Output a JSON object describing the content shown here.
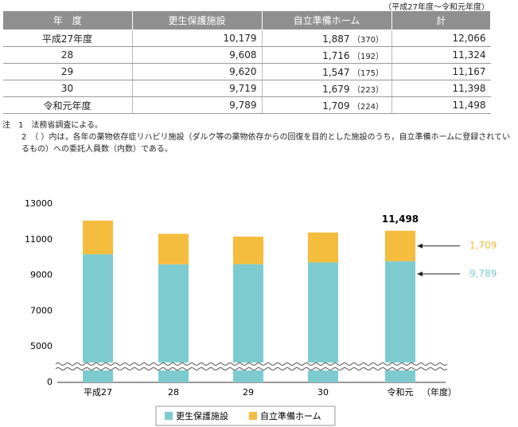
{
  "caption": "（平成27年度～令和元年度）",
  "table": {
    "headers": [
      "年　度",
      "更生保護施設",
      "自立準備ホーム",
      "計"
    ],
    "rows": [
      [
        "平成27年度",
        "10,179",
        "1,887",
        "（370）",
        "12,066"
      ],
      [
        "28",
        "9,608",
        "1,716",
        "（192）",
        "11,324"
      ],
      [
        "29",
        "9,620",
        "1,547",
        "（175）",
        "11,167"
      ],
      [
        "30",
        "9,719",
        "1,679",
        "（223）",
        "11,398"
      ],
      [
        "令和元年度",
        "9,789",
        "1,709",
        "（224）",
        "11,498"
      ]
    ]
  },
  "notes": [
    "注　1　法務省調査による。",
    "2　（ ）内は，各年の薬物依存症リハビリ施設（ダルク等の薬物依存からの回復を目的とした施設のうち，自立準備ホームに登録されているもの）への委託人員数（内数）である。"
  ],
  "chart_data": {
    "type": "stacked_bar",
    "categories": [
      "平成27",
      "28",
      "29",
      "30",
      "令和元"
    ],
    "x_unit_label": "（年度）",
    "series": [
      {
        "name": "更生保護施設",
        "color": "#7ecbcf",
        "values": [
          10179,
          9608,
          9620,
          9719,
          9789
        ],
        "value_labels": [
          null,
          null,
          null,
          null,
          "9,789"
        ]
      },
      {
        "name": "自立準備ホーム",
        "color": "#f5bd3e",
        "values": [
          1887,
          1716,
          1547,
          1679,
          1709
        ],
        "value_labels": [
          null,
          null,
          null,
          null,
          "1,709"
        ]
      }
    ],
    "total_label": "11,498",
    "ylim": [
      0,
      13000
    ],
    "yticks": [
      0,
      5000,
      7000,
      9000,
      11000,
      13000
    ],
    "axis_break": true,
    "legend": "bottom"
  }
}
